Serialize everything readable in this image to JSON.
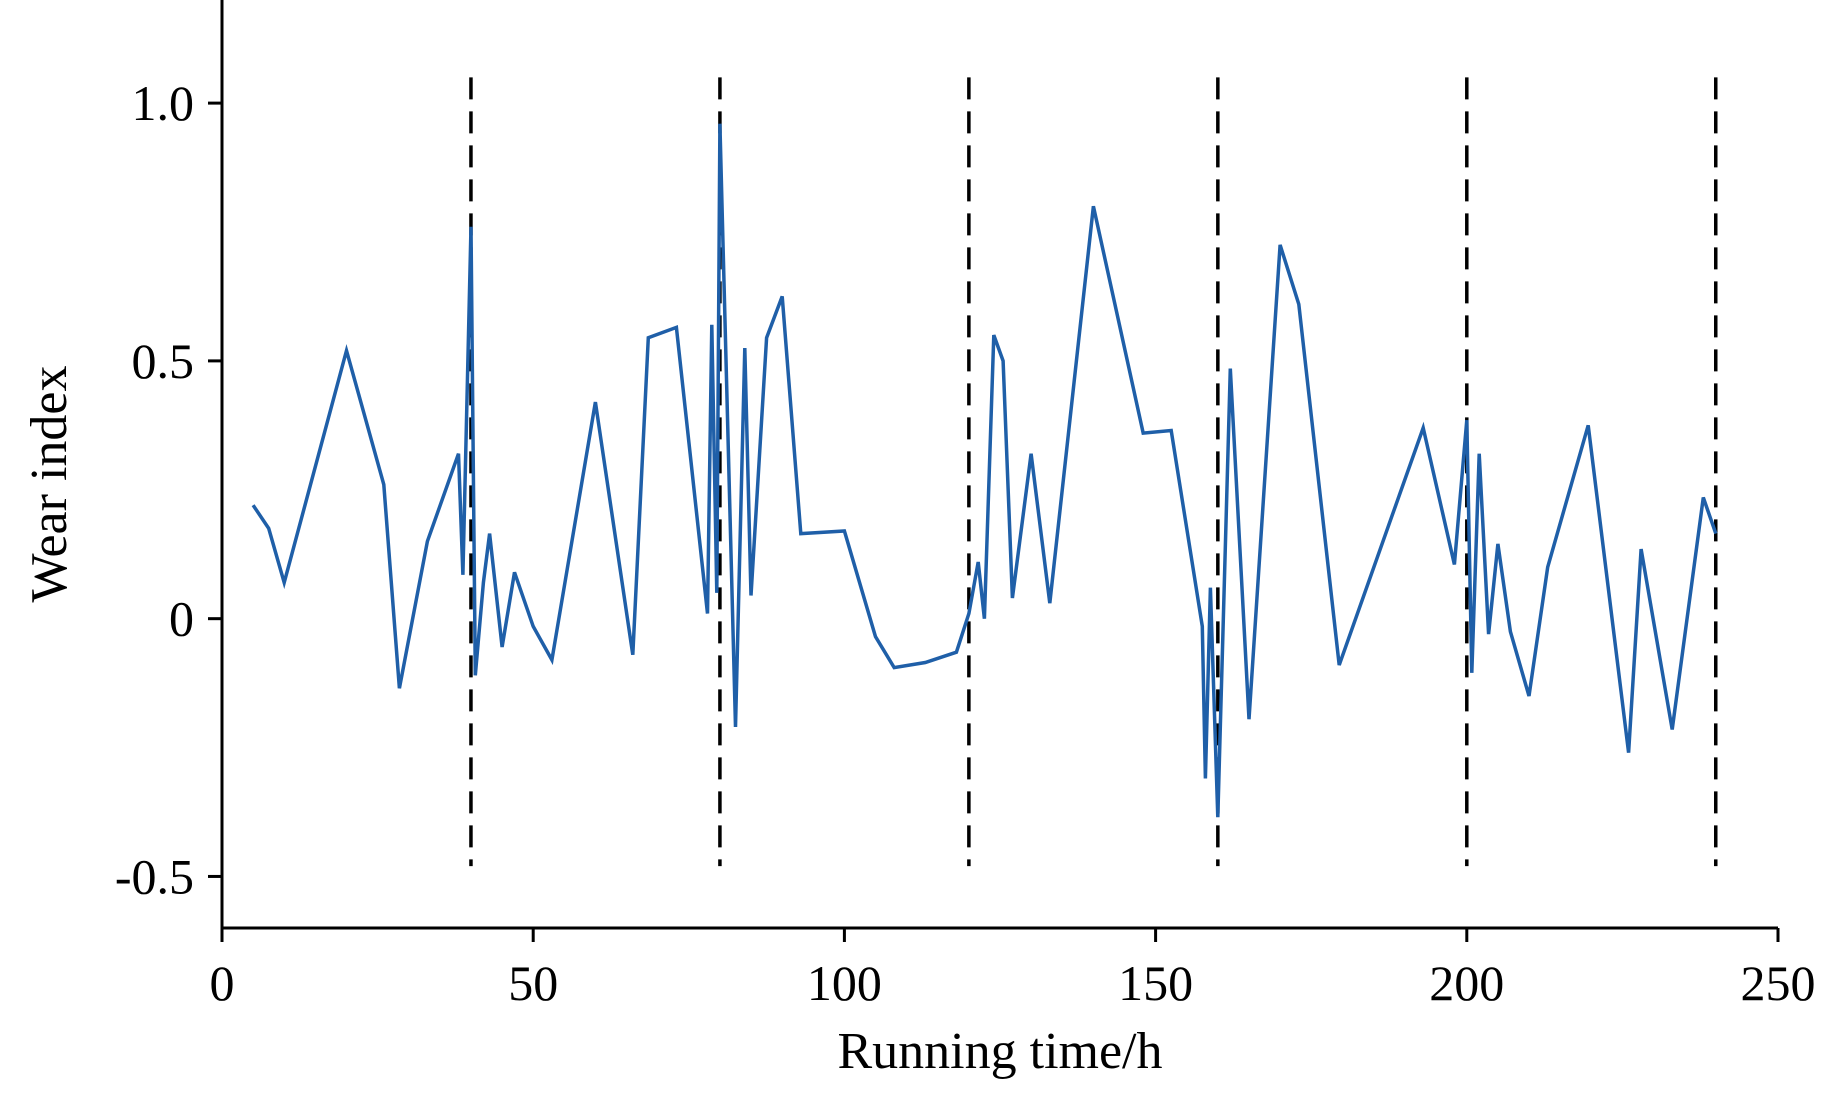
{
  "chart_data": {
    "type": "line",
    "xlabel": "Running time/h",
    "ylabel": "Wear index",
    "xlim": [
      0,
      250
    ],
    "ylim": [
      -0.6,
      1.2
    ],
    "xticks": [
      0,
      50,
      100,
      150,
      200,
      250
    ],
    "xtick_labels": [
      "0",
      "50",
      "100",
      "150",
      "200",
      "250"
    ],
    "yticks": [
      -0.5,
      0,
      0.5,
      1.0
    ],
    "ytick_labels": [
      "-0.5",
      "0",
      "0.5",
      "1.0"
    ],
    "grid": false,
    "legend": "none",
    "line_color": "#1f5fa8",
    "divider_color": "#000000",
    "dividers": [
      40,
      80,
      120,
      160,
      200,
      240
    ],
    "divider_range": [
      -0.48,
      1.05
    ],
    "series": [
      {
        "x": [
          5,
          7.5,
          10,
          20,
          26,
          28.5,
          33,
          38,
          38.7,
          40,
          40.7,
          42,
          43,
          45,
          47,
          50,
          53,
          60,
          66,
          68.5,
          73,
          78,
          78.7,
          79.5,
          80,
          82.5,
          84,
          85,
          87.5,
          90,
          93,
          100,
          105,
          108,
          113,
          118,
          120,
          121.5,
          122.5,
          124,
          125.5,
          127,
          130,
          133,
          140,
          148,
          152.5,
          157.5,
          158,
          158.8,
          160,
          162,
          165,
          170,
          173,
          179.5,
          188,
          193,
          198,
          200,
          200.8,
          202,
          203.5,
          205,
          207,
          210,
          213,
          219.5,
          226,
          228,
          233,
          238,
          240
        ],
        "y": [
          0.22,
          0.175,
          0.07,
          0.52,
          0.26,
          -0.135,
          0.15,
          0.32,
          0.085,
          0.76,
          -0.11,
          0.07,
          0.165,
          -0.055,
          0.09,
          -0.015,
          -0.08,
          0.42,
          -0.07,
          0.545,
          0.565,
          0.01,
          0.57,
          0.05,
          0.96,
          -0.21,
          0.525,
          0.045,
          0.545,
          0.625,
          0.165,
          0.17,
          -0.035,
          -0.095,
          -0.085,
          -0.065,
          0.01,
          0.11,
          0.0,
          0.55,
          0.5,
          0.04,
          0.32,
          0.03,
          0.8,
          0.36,
          0.365,
          -0.015,
          -0.31,
          0.06,
          -0.385,
          0.485,
          -0.195,
          0.725,
          0.61,
          -0.09,
          0.2,
          0.37,
          0.105,
          0.385,
          -0.105,
          0.32,
          -0.03,
          0.145,
          -0.025,
          -0.15,
          0.1,
          0.375,
          -0.26,
          0.135,
          -0.215,
          0.235,
          0.165
        ]
      }
    ]
  }
}
